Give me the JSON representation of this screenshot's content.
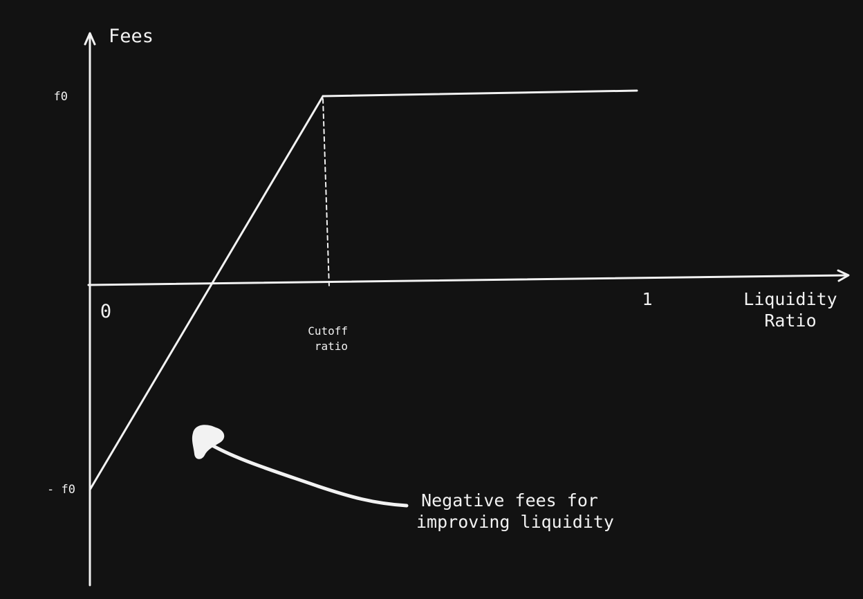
{
  "axes": {
    "y_label": "Fees",
    "x_label_line1": "Liquidity",
    "x_label_line2": "Ratio",
    "origin_label": "0",
    "x_max_label": "1",
    "y_pos_label": "f0",
    "y_neg_label": "- f0"
  },
  "cutoff": {
    "line1": "Cutoff",
    "line2": "ratio"
  },
  "annotation": {
    "line1": "Negative fees for",
    "line2": "improving liquidity"
  },
  "colors": {
    "background": "#121212",
    "ink": "#f2f2f2"
  }
}
